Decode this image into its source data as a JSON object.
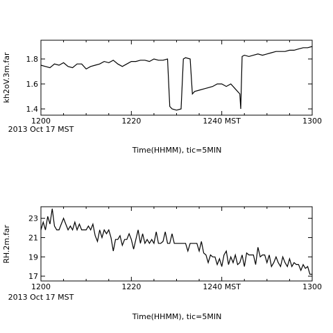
{
  "chart_data": [
    {
      "type": "line",
      "ylabel": "kh2oV.3m.far",
      "xlabel": "Time(HHMM), tic=5MIN",
      "x_tick_labels": [
        "1200",
        "1220",
        "1240 MST",
        "1300"
      ],
      "x_tick_values": [
        0,
        20,
        40,
        60
      ],
      "x_start_label": "2013 Oct 17 MST",
      "y_ticks": [
        1.4,
        1.6,
        1.8
      ],
      "xlim": [
        0,
        60
      ],
      "ylim": [
        1.35,
        1.95
      ],
      "grid": false,
      "series": [
        {
          "x": [
            0,
            1,
            2,
            3,
            4,
            5,
            6,
            7,
            8,
            9,
            10,
            11,
            12,
            13,
            14,
            15,
            16,
            17,
            18,
            19,
            20,
            21,
            22,
            23,
            24,
            25,
            26,
            27,
            28,
            28.5,
            29,
            30,
            31,
            31.5,
            32,
            33,
            33.5,
            34,
            35,
            36,
            37,
            38,
            39,
            40,
            41,
            42,
            43,
            44,
            44.2,
            44.5,
            45,
            46,
            47,
            48,
            49,
            50,
            51,
            52,
            53,
            54,
            55,
            56,
            57,
            58,
            59,
            60
          ],
          "y": [
            1.75,
            1.74,
            1.73,
            1.76,
            1.75,
            1.77,
            1.74,
            1.73,
            1.76,
            1.76,
            1.72,
            1.74,
            1.75,
            1.76,
            1.78,
            1.77,
            1.79,
            1.76,
            1.74,
            1.76,
            1.78,
            1.78,
            1.79,
            1.79,
            1.78,
            1.8,
            1.79,
            1.79,
            1.8,
            1.42,
            1.4,
            1.39,
            1.4,
            1.8,
            1.81,
            1.8,
            1.52,
            1.54,
            1.55,
            1.56,
            1.57,
            1.58,
            1.6,
            1.6,
            1.58,
            1.6,
            1.56,
            1.52,
            1.4,
            1.82,
            1.83,
            1.82,
            1.83,
            1.84,
            1.83,
            1.84,
            1.85,
            1.86,
            1.86,
            1.86,
            1.87,
            1.87,
            1.88,
            1.89,
            1.89,
            1.9
          ]
        }
      ]
    },
    {
      "type": "line",
      "ylabel": "RH.2m.far",
      "xlabel": "Time(HHMM), tic=5MIN",
      "x_tick_labels": [
        "1200",
        "1220",
        "1240 MST",
        "1300"
      ],
      "x_tick_values": [
        0,
        20,
        40,
        60
      ],
      "x_start_label": "2013 Oct 17 MST",
      "y_ticks": [
        17,
        19,
        21,
        23
      ],
      "xlim": [
        0,
        60
      ],
      "ylim": [
        16.5,
        24.2
      ],
      "grid": false,
      "series": [
        {
          "x": [
            0,
            0.5,
            1,
            1.5,
            2,
            2.5,
            3,
            3.5,
            4,
            4.5,
            5,
            5.5,
            6,
            6.5,
            7,
            7.5,
            8,
            8.5,
            9,
            9.5,
            10,
            10.5,
            11,
            11.5,
            12,
            12.5,
            13,
            13.5,
            14,
            14.5,
            15,
            15.5,
            16,
            16.5,
            17,
            17.5,
            18,
            18.5,
            19,
            19.5,
            20,
            20.5,
            21,
            21.5,
            22,
            22.5,
            23,
            23.5,
            24,
            24.5,
            25,
            25.5,
            26,
            26.5,
            27,
            27.5,
            28,
            28.5,
            29,
            29.5,
            30,
            30.5,
            31,
            31.5,
            32,
            32.5,
            33,
            33.5,
            34,
            34.5,
            35,
            35.5,
            36,
            36.5,
            37,
            37.5,
            38,
            38.5,
            39,
            39.5,
            40,
            40.5,
            41,
            41.5,
            42,
            42.5,
            43,
            43.5,
            44,
            44.5,
            45,
            45.5,
            46,
            46.5,
            47,
            47.5,
            48,
            48.5,
            49,
            49.5,
            50,
            50.5,
            51,
            51.5,
            52,
            52.5,
            53,
            53.5,
            54,
            54.5,
            55,
            55.5,
            56,
            56.5,
            57,
            57.5,
            58,
            58.5,
            59,
            59.5,
            60
          ],
          "y": [
            21.8,
            22.6,
            21.8,
            23.2,
            22.4,
            24.0,
            22.2,
            21.8,
            21.8,
            22.4,
            23.0,
            22.4,
            21.8,
            22.2,
            21.8,
            22.6,
            21.8,
            22.4,
            21.8,
            21.8,
            21.8,
            22.2,
            21.8,
            22.4,
            21.2,
            20.6,
            21.8,
            21.0,
            21.8,
            21.4,
            21.8,
            21.0,
            19.6,
            20.8,
            20.8,
            21.2,
            20.2,
            20.8,
            20.8,
            21.4,
            20.8,
            19.8,
            20.8,
            21.8,
            20.4,
            21.4,
            20.4,
            20.8,
            20.4,
            20.8,
            20.4,
            21.6,
            20.4,
            20.4,
            20.6,
            21.6,
            20.4,
            20.4,
            21.4,
            20.4,
            20.4,
            20.4,
            20.4,
            20.4,
            20.4,
            19.6,
            20.4,
            20.4,
            20.4,
            20.4,
            19.6,
            20.6,
            19.4,
            19.2,
            18.4,
            19.2,
            19.0,
            19.0,
            18.2,
            18.8,
            18.0,
            19.2,
            19.6,
            18.2,
            19.0,
            18.4,
            19.2,
            18.2,
            18.4,
            19.2,
            18.0,
            19.4,
            19.2,
            19.2,
            19.2,
            18.2,
            20.0,
            19.0,
            19.2,
            19.2,
            18.4,
            19.2,
            18.0,
            18.4,
            19.0,
            18.4,
            18.0,
            19.0,
            18.4,
            18.0,
            18.8,
            18.0,
            18.4,
            18.2,
            18.2,
            17.6,
            18.2,
            17.8,
            18.0,
            17.2,
            17.2
          ]
        }
      ]
    }
  ]
}
